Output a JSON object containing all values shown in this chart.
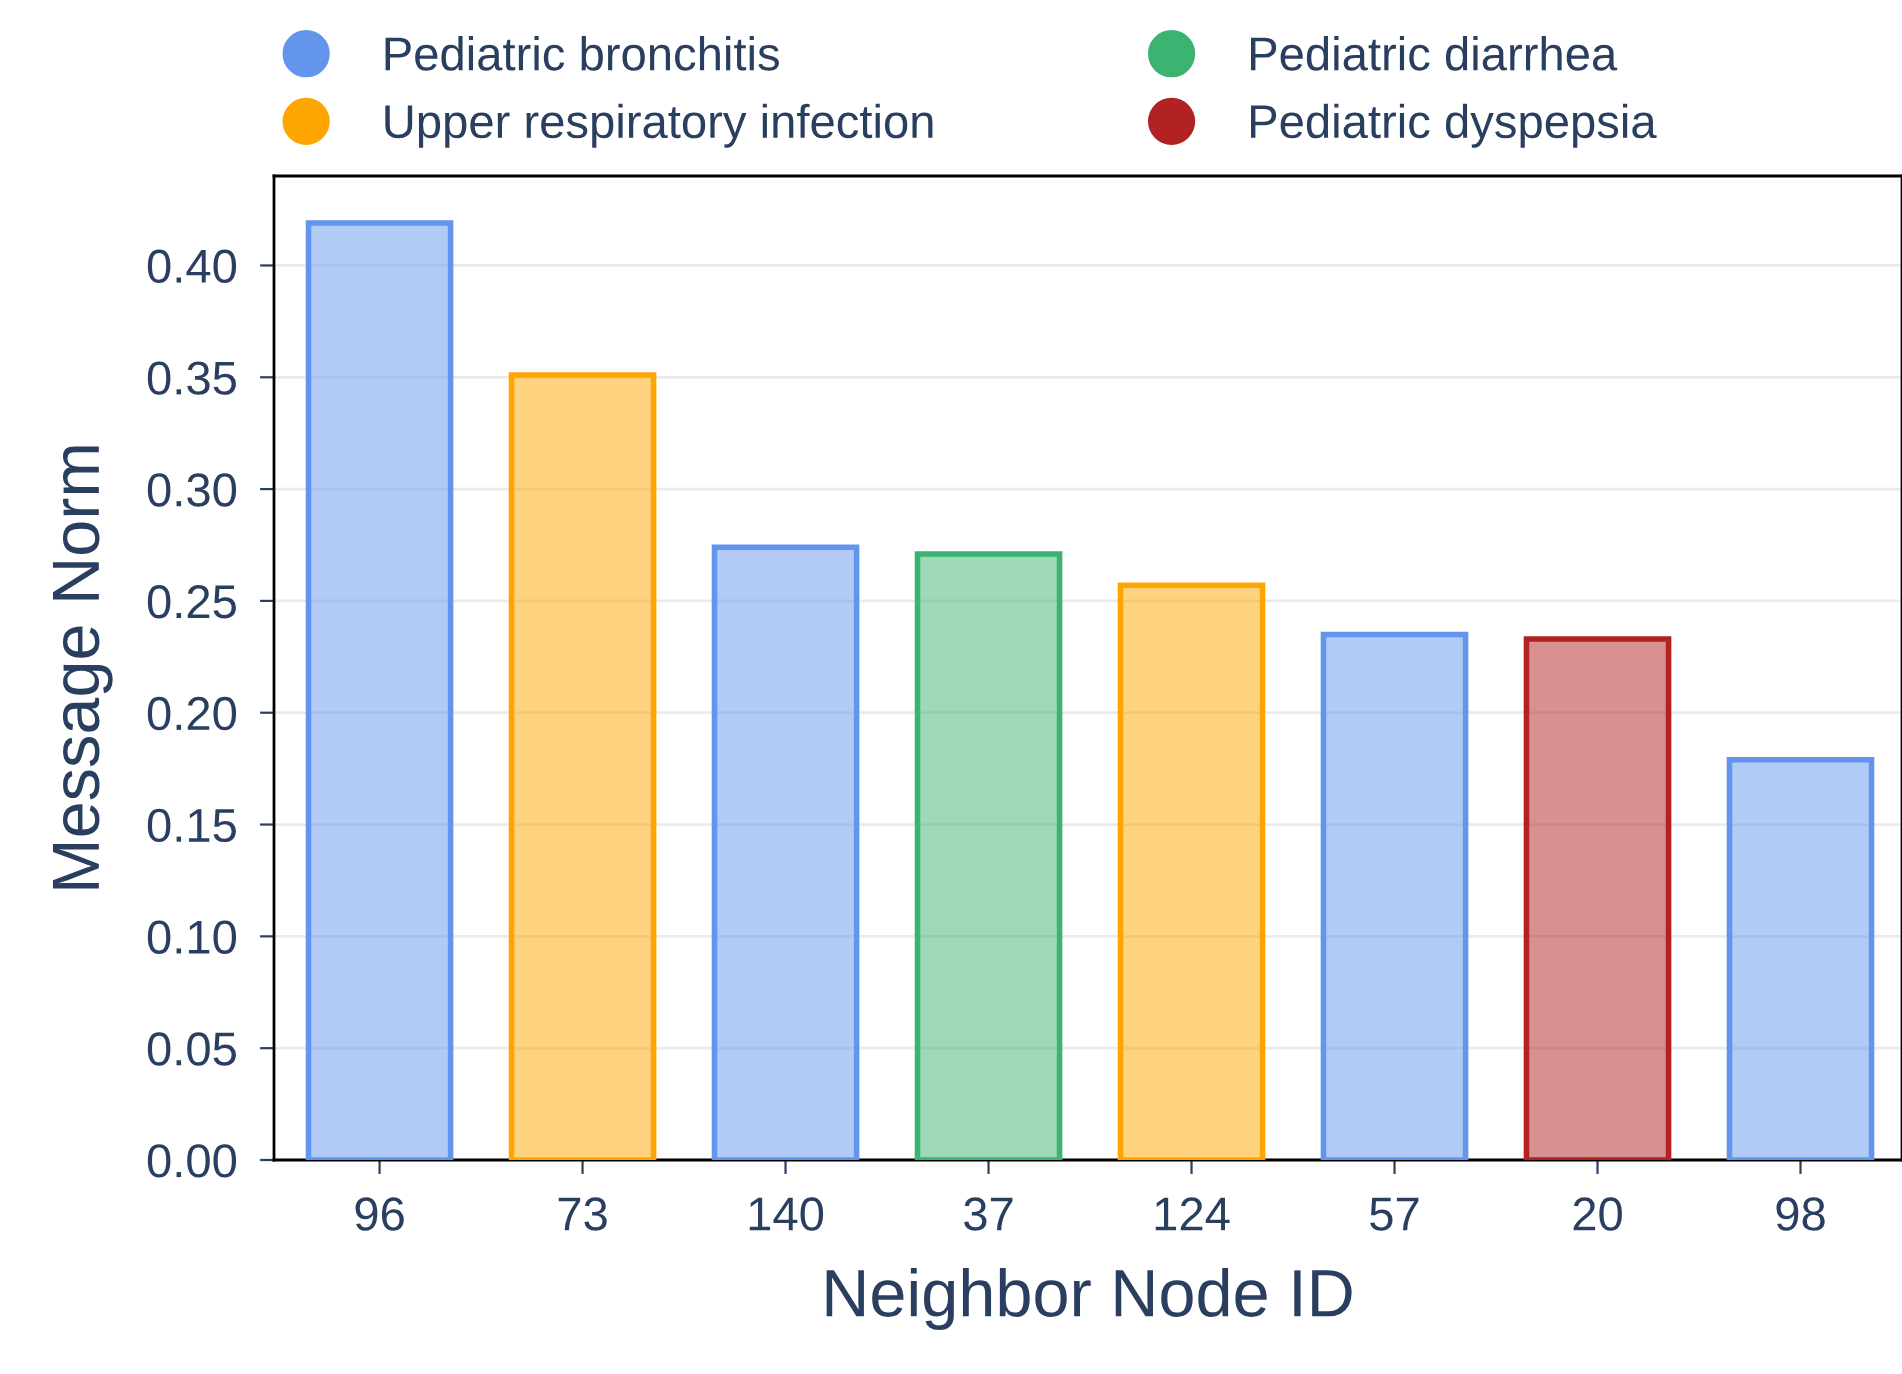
{
  "chart_data": {
    "type": "bar",
    "xlabel": "Neighbor Node ID",
    "ylabel": "Message Norm",
    "categories": [
      "96",
      "73",
      "140",
      "37",
      "124",
      "57",
      "20",
      "98"
    ],
    "series": [
      {
        "name": "Pediatric bronchitis",
        "color": "#6495ed",
        "values": [
          0.419,
          null,
          0.274,
          null,
          null,
          0.235,
          null,
          0.179
        ]
      },
      {
        "name": "Upper respiratory infection",
        "color": "#ffa500",
        "values": [
          null,
          0.351,
          null,
          null,
          0.257,
          null,
          null,
          null
        ]
      },
      {
        "name": "Pediatric diarrhea",
        "color": "#3cb371",
        "values": [
          null,
          null,
          null,
          0.271,
          null,
          null,
          null,
          null
        ]
      },
      {
        "name": "Pediatric dyspepsia",
        "color": "#b22222",
        "values": [
          null,
          null,
          null,
          null,
          null,
          null,
          0.233,
          null
        ]
      }
    ],
    "ylim": [
      0,
      0.44
    ],
    "yticks": [
      {
        "value": 0,
        "label": "0.00"
      },
      {
        "value": 0.05,
        "label": "0.05"
      },
      {
        "value": 0.1,
        "label": "0.10"
      },
      {
        "value": 0.15,
        "label": "0.15"
      },
      {
        "value": 0.2,
        "label": "0.20"
      },
      {
        "value": 0.25,
        "label": "0.25"
      },
      {
        "value": 0.3,
        "label": "0.30"
      },
      {
        "value": 0.35,
        "label": "0.35"
      },
      {
        "value": 0.4,
        "label": "0.40"
      }
    ],
    "grid": "y",
    "legend": "top",
    "marker": "circle"
  }
}
